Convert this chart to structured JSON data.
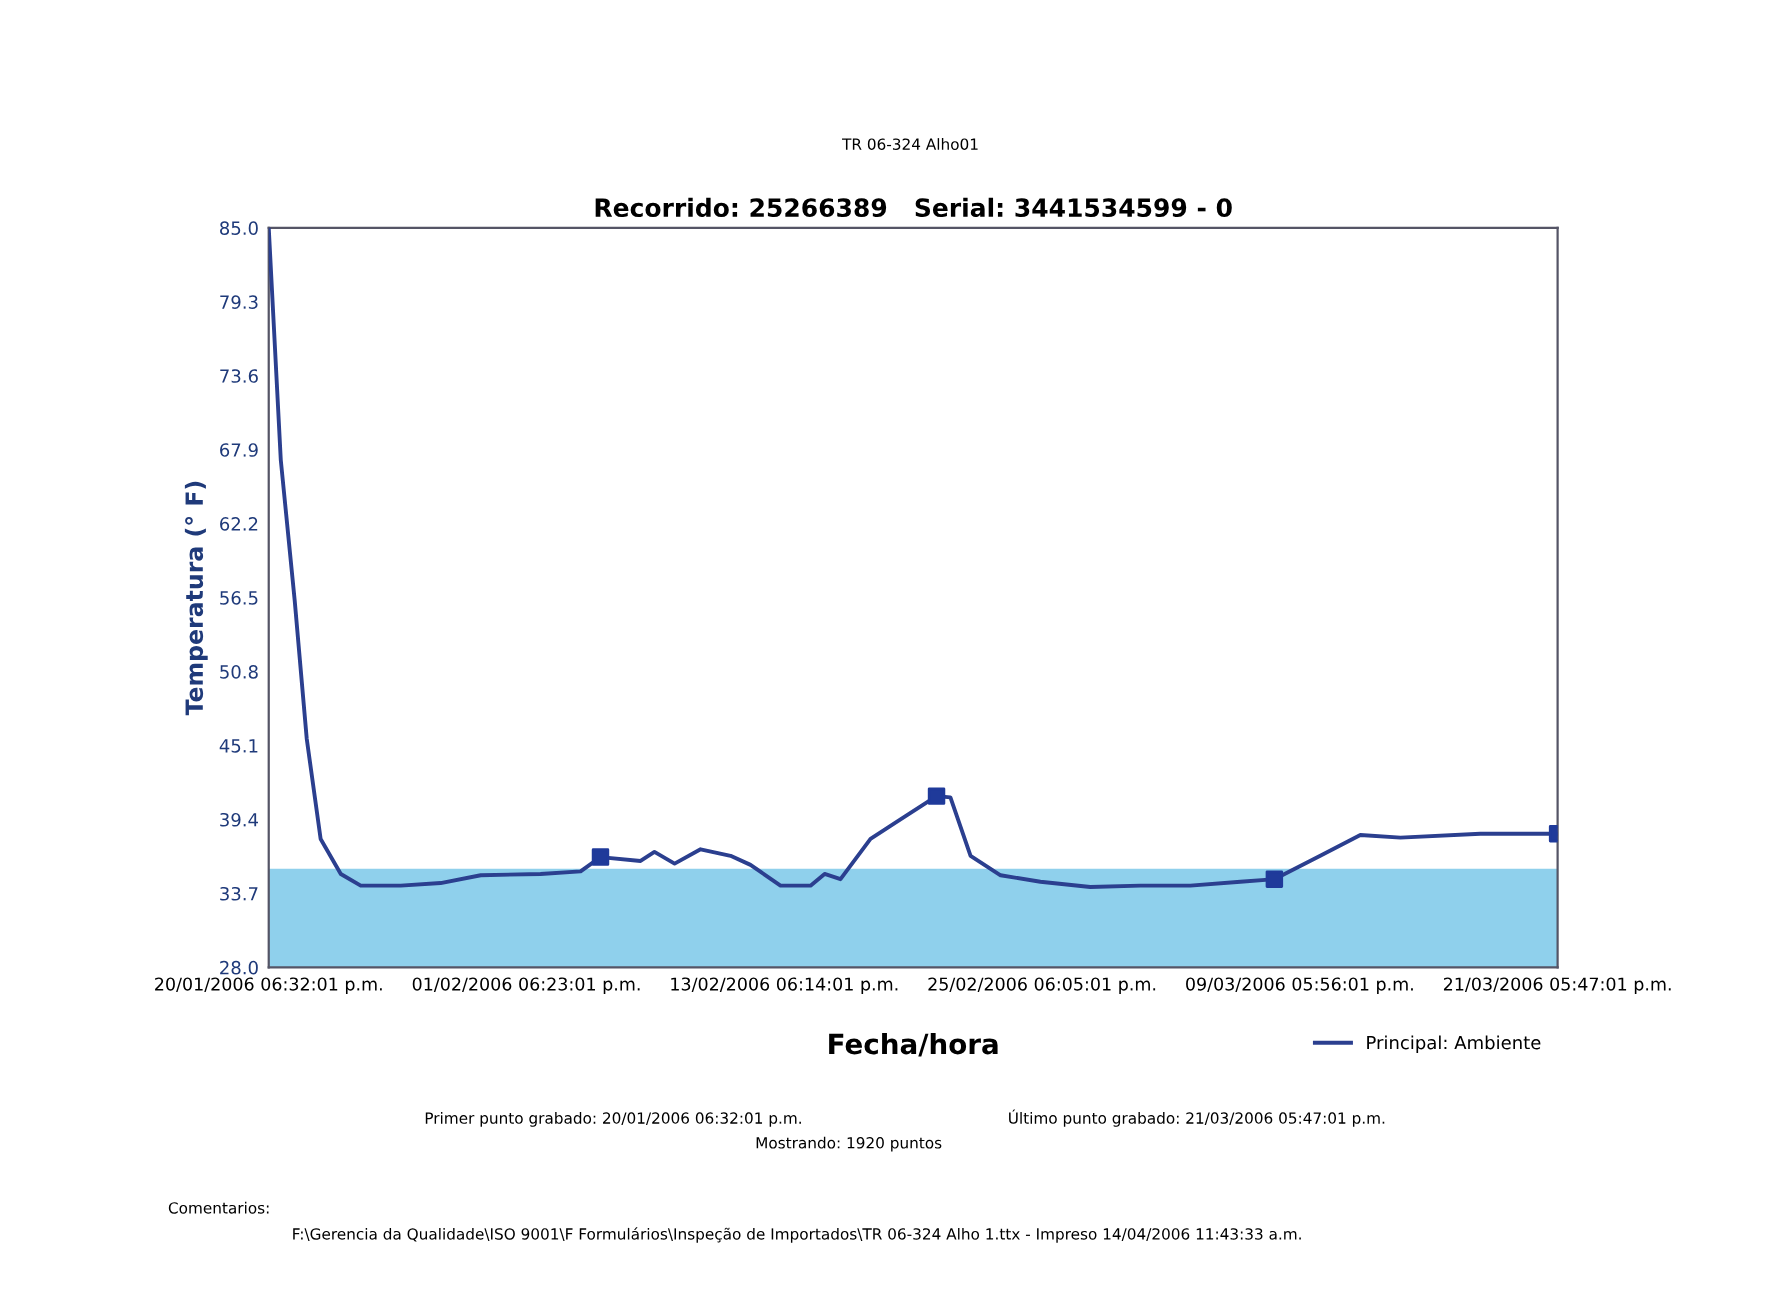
{
  "chart_data": {
    "type": "line",
    "title": "TR 06-324 Alho01",
    "subtitle": "Recorrido: 25266389   Serial: 3441534599 - 0",
    "xlabel": "Fecha/hora",
    "ylabel": "Temperatura (° F)",
    "x": [
      "2006-01-20T18:32",
      "2006-01-21T08:00",
      "2006-01-21T23:30",
      "2006-01-22T13:00",
      "2006-01-23T04:30",
      "2006-01-24T03:00",
      "2006-01-25T01:15",
      "2006-01-26T22:00",
      "2006-01-28T18:30",
      "2006-01-30T15:15",
      "2006-02-02T10:00",
      "2006-02-04T06:45",
      "2006-02-05T05:00",
      "2006-02-07T01:45",
      "2006-02-07T17:15",
      "2006-02-08T15:45",
      "2006-02-09T20:45",
      "2006-02-11T06:15",
      "2006-02-12T04:30",
      "2006-02-13T14:00",
      "2006-02-14T23:30",
      "2006-02-15T15:15",
      "2006-02-16T09:00",
      "2006-02-17T18:30",
      "2006-02-19T04:00",
      "2006-02-20T20:15",
      "2006-02-21T11:45",
      "2006-02-22T10:15",
      "2006-02-23T19:45",
      "2006-02-25T16:15",
      "2006-02-28T00:00",
      "2006-03-02T07:45",
      "2006-03-04T15:45",
      "2006-03-06T23:30",
      "2006-03-08T13:30",
      "2006-03-10T16:45",
      "2006-03-12T13:30",
      "2006-03-14T10:15",
      "2006-03-18T03:30",
      "2006-03-21T17:47"
    ],
    "series": [
      {
        "name": "Principal: Ambiente",
        "color": "#2b3f8f",
        "marker": "none",
        "values": [
          85.0,
          67.1,
          56.3,
          45.6,
          37.9,
          35.2,
          34.3,
          34.3,
          34.5,
          35.1,
          35.2,
          35.4,
          36.5,
          36.2,
          36.9,
          36.0,
          37.1,
          36.6,
          35.9,
          34.3,
          34.3,
          35.2,
          34.8,
          37.9,
          39.4,
          41.2,
          41.1,
          36.6,
          35.1,
          34.6,
          34.2,
          34.3,
          34.3,
          34.6,
          34.8,
          36.6,
          38.2,
          38.0,
          38.3,
          38.3
        ]
      },
      {
        "type": "scatter",
        "color": "#1f3a9a",
        "marker": "square",
        "x": [
          "2006-02-05T05:00",
          "2006-02-20T20:15",
          "2006-03-08T13:30",
          "2006-03-21T17:47"
        ],
        "values": [
          36.5,
          41.2,
          34.8,
          38.3
        ]
      }
    ],
    "xlim": [
      "2006-01-20T18:32",
      "2006-03-21T17:47"
    ],
    "xticks": [
      {
        "value": "2006-01-20T18:32",
        "label": "20/01/2006 06:32:01 p.m."
      },
      {
        "value": "2006-02-01T18:23",
        "label": "01/02/2006 06:23:01 p.m."
      },
      {
        "value": "2006-02-13T18:14",
        "label": "13/02/2006 06:14:01 p.m."
      },
      {
        "value": "2006-02-25T18:05",
        "label": "25/02/2006 06:05:01 p.m."
      },
      {
        "value": "2006-03-09T17:56",
        "label": "09/03/2006 05:56:01 p.m."
      },
      {
        "value": "2006-03-21T17:47",
        "label": "21/03/2006 05:47:01 p.m."
      }
    ],
    "ylim": [
      28.0,
      85.0
    ],
    "yticks": [
      {
        "value": 28.0,
        "label": "28.0"
      },
      33.7,
      39.4,
      45.1,
      50.8,
      56.5,
      62.2,
      67.9,
      73.6,
      79.3,
      {
        "value": 85.0,
        "label": "85.0"
      }
    ],
    "bands": [
      {
        "axis": "y",
        "from": 28.0,
        "to": 35.6,
        "color": "#8fd0ec"
      }
    ],
    "grid": false,
    "legend": "bottom right",
    "line_style": "solid",
    "annotations": [
      "Primer punto grabado: 20/01/2006 06:32:01 p.m.",
      "Último punto grabado: 21/03/2006 05:47:01 p.m.",
      "Mostrando: 1920 puntos",
      "Comentarios:",
      "F:\\Gerencia da Qualidade\\ISO 9001\\F Formulários\\Inspeção de Importados\\TR 06-324 Alho 1.ttx - Impreso 14/04/2006 11:43:33 a.m."
    ]
  }
}
